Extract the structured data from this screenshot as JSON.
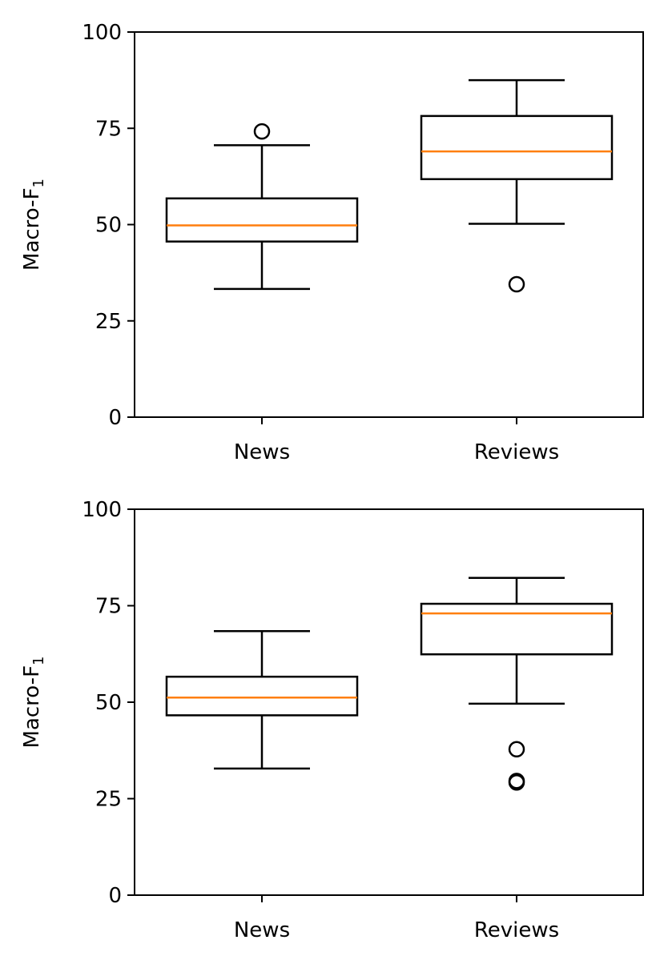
{
  "chart_data": [
    {
      "type": "box",
      "categories": [
        "News",
        "Reviews"
      ],
      "ylabel": "Macro-F",
      "ylabel_sub": "1",
      "ylim": [
        0,
        100
      ],
      "yticks": [
        "0",
        "25",
        "50",
        "75",
        "100"
      ],
      "boxes": [
        {
          "category": "News",
          "whisker_low": 33.3,
          "q1": 45.6,
          "median": 49.8,
          "q3": 56.8,
          "whisker_high": 70.6,
          "outliers": [
            74.2
          ]
        },
        {
          "category": "Reviews",
          "whisker_low": 50.2,
          "q1": 61.8,
          "median": 69.0,
          "q3": 78.2,
          "whisker_high": 87.5,
          "outliers": [
            34.5
          ]
        }
      ],
      "colors": {
        "box": "#000000",
        "median": "#ff7f0e"
      }
    },
    {
      "type": "box",
      "categories": [
        "News",
        "Reviews"
      ],
      "ylabel": "Macro-F",
      "ylabel_sub": "1",
      "ylim": [
        0,
        100
      ],
      "yticks": [
        "0",
        "25",
        "50",
        "75",
        "100"
      ],
      "boxes": [
        {
          "category": "News",
          "whisker_low": 32.8,
          "q1": 46.6,
          "median": 51.2,
          "q3": 56.6,
          "whisker_high": 68.4,
          "outliers": []
        },
        {
          "category": "Reviews",
          "whisker_low": 49.6,
          "q1": 62.4,
          "median": 73.0,
          "q3": 75.5,
          "whisker_high": 82.2,
          "outliers": [
            37.8,
            29.6,
            29.2
          ]
        }
      ],
      "colors": {
        "box": "#000000",
        "median": "#ff7f0e"
      }
    }
  ]
}
